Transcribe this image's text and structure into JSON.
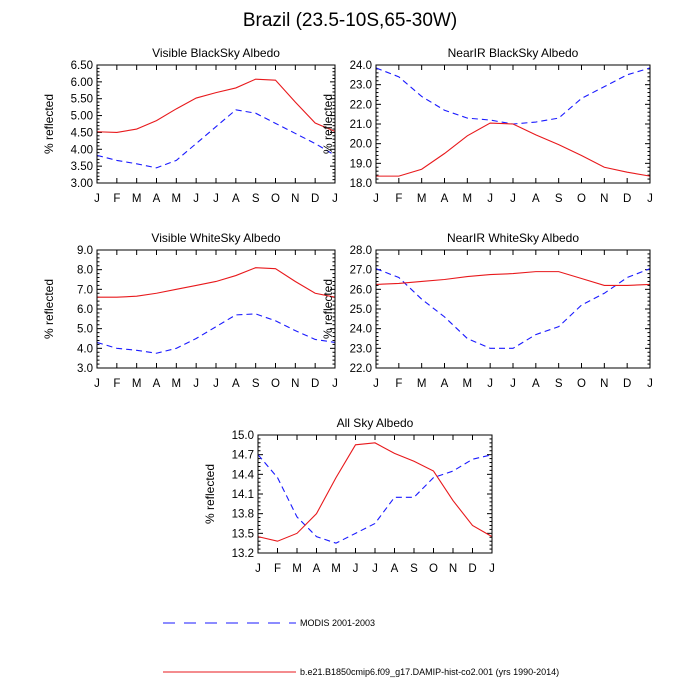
{
  "title": "Brazil (23.5-10S,65-30W)",
  "legend": {
    "modis_label": "MODIS 2001-2003",
    "model_label": "b.e21.B1850cmip6.f09_g17.DAMIP-hist-co2.001 (yrs 1990-2014)"
  },
  "colors": {
    "modis": "#1a1aff",
    "model": "#e8191c"
  },
  "chart_data": [
    {
      "type": "line",
      "title": "Visible BlackSky Albedo",
      "ylabel": "% reflected",
      "categories": [
        "J",
        "F",
        "M",
        "A",
        "M",
        "J",
        "J",
        "A",
        "S",
        "O",
        "N",
        "D",
        "J"
      ],
      "ylim": [
        3.0,
        6.5
      ],
      "yticks": [
        "3.00",
        "3.50",
        "4.00",
        "4.50",
        "5.00",
        "5.50",
        "6.00",
        "6.50"
      ],
      "series": [
        {
          "name": "MODIS 2001-2003",
          "style": "dashed",
          "values": [
            3.82,
            3.67,
            3.57,
            3.45,
            3.67,
            4.17,
            4.67,
            5.17,
            5.07,
            4.77,
            4.47,
            4.17,
            3.82
          ]
        },
        {
          "name": "b.e21.B1850cmip6.f09_g17.DAMIP-hist-co2.001 (yrs 1990-2014)",
          "style": "solid",
          "values": [
            4.52,
            4.5,
            4.6,
            4.85,
            5.2,
            5.52,
            5.68,
            5.82,
            6.08,
            6.05,
            5.4,
            4.78,
            4.53
          ]
        }
      ]
    },
    {
      "type": "line",
      "title": "NearIR BlackSky Albedo",
      "ylabel": "% reflected",
      "categories": [
        "J",
        "F",
        "M",
        "A",
        "M",
        "J",
        "J",
        "A",
        "S",
        "O",
        "N",
        "D",
        "J"
      ],
      "ylim": [
        18.0,
        24.0
      ],
      "yticks": [
        "18.0",
        "19.0",
        "20.0",
        "21.0",
        "22.0",
        "23.0",
        "24.0"
      ],
      "series": [
        {
          "name": "MODIS 2001-2003",
          "style": "dashed",
          "values": [
            23.85,
            23.4,
            22.4,
            21.7,
            21.3,
            21.2,
            21.0,
            21.1,
            21.3,
            22.3,
            22.9,
            23.5,
            23.85
          ]
        },
        {
          "name": "b.e21.B1850cmip6.f09_g17.DAMIP-hist-co2.001 (yrs 1990-2014)",
          "style": "solid",
          "values": [
            18.35,
            18.35,
            18.7,
            19.5,
            20.4,
            21.05,
            21.0,
            20.45,
            19.95,
            19.4,
            18.8,
            18.55,
            18.35
          ]
        }
      ]
    },
    {
      "type": "line",
      "title": "Visible WhiteSky Albedo",
      "ylabel": "% reflected",
      "categories": [
        "J",
        "F",
        "M",
        "A",
        "M",
        "J",
        "J",
        "A",
        "S",
        "O",
        "N",
        "D",
        "J"
      ],
      "ylim": [
        3.0,
        9.0
      ],
      "yticks": [
        "3.0",
        "4.0",
        "5.0",
        "6.0",
        "7.0",
        "8.0",
        "9.0"
      ],
      "series": [
        {
          "name": "MODIS 2001-2003",
          "style": "dashed",
          "values": [
            4.3,
            4.0,
            3.9,
            3.75,
            4.0,
            4.5,
            5.1,
            5.7,
            5.75,
            5.4,
            4.9,
            4.45,
            4.3
          ]
        },
        {
          "name": "b.e21.B1850cmip6.f09_g17.DAMIP-hist-co2.001 (yrs 1990-2014)",
          "style": "solid",
          "values": [
            6.6,
            6.6,
            6.65,
            6.8,
            7.0,
            7.2,
            7.4,
            7.7,
            8.1,
            8.05,
            7.4,
            6.8,
            6.6
          ]
        }
      ]
    },
    {
      "type": "line",
      "title": "NearIR WhiteSky Albedo",
      "ylabel": "% reflected",
      "categories": [
        "J",
        "F",
        "M",
        "A",
        "M",
        "J",
        "J",
        "A",
        "S",
        "O",
        "N",
        "D",
        "J"
      ],
      "ylim": [
        22.0,
        28.0
      ],
      "yticks": [
        "22.0",
        "23.0",
        "24.0",
        "25.0",
        "26.0",
        "27.0",
        "28.0"
      ],
      "series": [
        {
          "name": "MODIS 2001-2003",
          "style": "dashed",
          "values": [
            27.05,
            26.6,
            25.5,
            24.6,
            23.5,
            23.0,
            23.0,
            23.7,
            24.1,
            25.2,
            25.8,
            26.6,
            27.05
          ]
        },
        {
          "name": "b.e21.B1850cmip6.f09_g17.DAMIP-hist-co2.001 (yrs 1990-2014)",
          "style": "solid",
          "values": [
            26.25,
            26.3,
            26.4,
            26.5,
            26.65,
            26.75,
            26.8,
            26.9,
            26.9,
            26.55,
            26.2,
            26.2,
            26.25
          ]
        }
      ]
    },
    {
      "type": "line",
      "title": "All Sky Albedo",
      "ylabel": "% reflected",
      "categories": [
        "J",
        "F",
        "M",
        "A",
        "M",
        "J",
        "J",
        "A",
        "S",
        "O",
        "N",
        "D",
        "J"
      ],
      "ylim": [
        13.2,
        15.0
      ],
      "yticks": [
        "13.2",
        "13.5",
        "13.8",
        "14.1",
        "14.4",
        "14.7",
        "15.0"
      ],
      "series": [
        {
          "name": "MODIS 2001-2003",
          "style": "dashed",
          "values": [
            14.7,
            14.35,
            13.75,
            13.45,
            13.35,
            13.5,
            13.65,
            14.05,
            14.05,
            14.35,
            14.45,
            14.63,
            14.7
          ]
        },
        {
          "name": "b.e21.B1850cmip6.f09_g17.DAMIP-hist-co2.001 (yrs 1990-2014)",
          "style": "solid",
          "values": [
            13.45,
            13.38,
            13.5,
            13.8,
            14.35,
            14.85,
            14.88,
            14.72,
            14.6,
            14.45,
            14.0,
            13.62,
            13.45
          ]
        }
      ]
    }
  ]
}
